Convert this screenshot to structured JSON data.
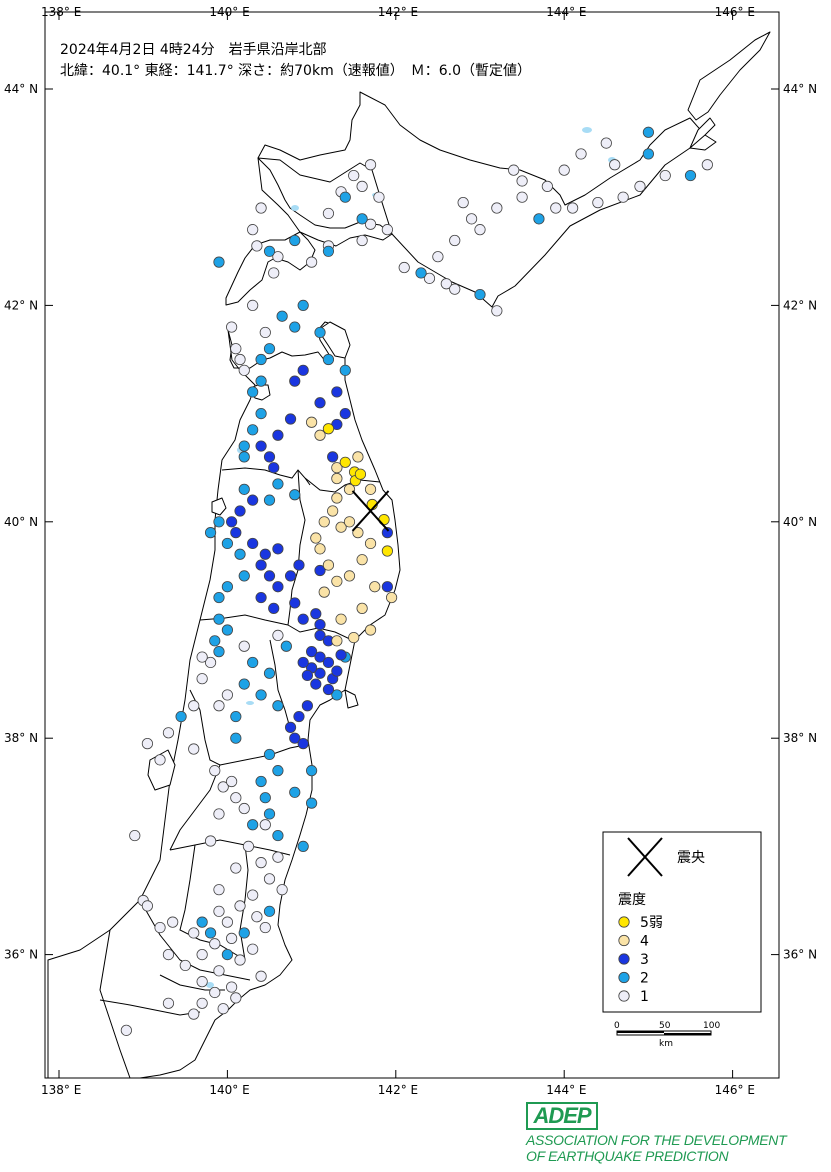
{
  "header": {
    "line1": "2024年4月2日 4時24分　岩手県沿岸北部",
    "line2": "北緯：40.1° 東経：141.7° 深さ：約70km（速報値）　Ｍ：6.0（暫定値）"
  },
  "axes": {
    "lon_labels": [
      "138° E",
      "140° E",
      "142° E",
      "144° E",
      "146° E"
    ],
    "lat_labels": [
      "44° N",
      "42° N",
      "40° N",
      "38° N",
      "36° N"
    ]
  },
  "legend": {
    "epicenter_label": "震央",
    "intensity_title": "震度",
    "items": [
      {
        "label": "5弱",
        "color": "#ffe600"
      },
      {
        "label": "4",
        "color": "#fae3a7"
      },
      {
        "label": "3",
        "color": "#1a36e0"
      },
      {
        "label": "2",
        "color": "#1ea2e6"
      },
      {
        "label": "1",
        "color": "#eeeef8"
      }
    ]
  },
  "scale": {
    "ticks": [
      "0",
      "50",
      "100"
    ],
    "unit": "km"
  },
  "logo": {
    "badge": "ADEP",
    "line1": "ASSOCIATION  FOR THE DEVELOPMENT",
    "line2": "OF EARTHQUAKE PREDICTION"
  },
  "epicenter": {
    "lat": 40.1,
    "lon": 141.7
  },
  "stations": [
    {
      "lat": 40.16,
      "lon": 141.72,
      "i": "5-"
    },
    {
      "lat": 40.02,
      "lon": 141.86,
      "i": "5-"
    },
    {
      "lat": 40.46,
      "lon": 141.51,
      "i": "5-"
    },
    {
      "lat": 40.55,
      "lon": 141.4,
      "i": "5-"
    },
    {
      "lat": 40.38,
      "lon": 141.52,
      "i": "5-"
    },
    {
      "lat": 40.44,
      "lon": 141.58,
      "i": "5-"
    },
    {
      "lat": 40.86,
      "lon": 141.2,
      "i": "5-"
    },
    {
      "lat": 39.73,
      "lon": 141.9,
      "i": "5-"
    },
    {
      "lat": 40.5,
      "lon": 141.3,
      "i": "4"
    },
    {
      "lat": 40.4,
      "lon": 141.3,
      "i": "4"
    },
    {
      "lat": 40.3,
      "lon": 141.45,
      "i": "4"
    },
    {
      "lat": 40.22,
      "lon": 141.3,
      "i": "4"
    },
    {
      "lat": 40.1,
      "lon": 141.25,
      "i": "4"
    },
    {
      "lat": 40.0,
      "lon": 141.15,
      "i": "4"
    },
    {
      "lat": 39.95,
      "lon": 141.35,
      "i": "4"
    },
    {
      "lat": 39.9,
      "lon": 141.55,
      "i": "4"
    },
    {
      "lat": 39.8,
      "lon": 141.7,
      "i": "4"
    },
    {
      "lat": 39.75,
      "lon": 141.1,
      "i": "4"
    },
    {
      "lat": 39.6,
      "lon": 141.2,
      "i": "4"
    },
    {
      "lat": 39.5,
      "lon": 141.45,
      "i": "4"
    },
    {
      "lat": 39.4,
      "lon": 141.75,
      "i": "4"
    },
    {
      "lat": 39.3,
      "lon": 141.95,
      "i": "4"
    },
    {
      "lat": 39.2,
      "lon": 141.6,
      "i": "4"
    },
    {
      "lat": 39.1,
      "lon": 141.35,
      "i": "4"
    },
    {
      "lat": 39.0,
      "lon": 141.7,
      "i": "4"
    },
    {
      "lat": 38.93,
      "lon": 141.5,
      "i": "4"
    },
    {
      "lat": 39.35,
      "lon": 141.15,
      "i": "4"
    },
    {
      "lat": 40.6,
      "lon": 141.55,
      "i": "4"
    },
    {
      "lat": 40.3,
      "lon": 141.7,
      "i": "4"
    },
    {
      "lat": 39.65,
      "lon": 141.6,
      "i": "4"
    },
    {
      "lat": 40.92,
      "lon": 141.0,
      "i": "4"
    },
    {
      "lat": 40.8,
      "lon": 141.1,
      "i": "4"
    },
    {
      "lat": 39.85,
      "lon": 141.05,
      "i": "4"
    },
    {
      "lat": 39.45,
      "lon": 141.3,
      "i": "4"
    },
    {
      "lat": 38.9,
      "lon": 141.3,
      "i": "4"
    },
    {
      "lat": 40.0,
      "lon": 141.45,
      "i": "4"
    },
    {
      "lat": 41.2,
      "lon": 141.3,
      "i": "3"
    },
    {
      "lat": 41.1,
      "lon": 141.1,
      "i": "3"
    },
    {
      "lat": 41.0,
      "lon": 141.4,
      "i": "3"
    },
    {
      "lat": 40.9,
      "lon": 141.3,
      "i": "3"
    },
    {
      "lat": 41.4,
      "lon": 140.9,
      "i": "3"
    },
    {
      "lat": 41.3,
      "lon": 140.8,
      "i": "3"
    },
    {
      "lat": 40.95,
      "lon": 140.75,
      "i": "3"
    },
    {
      "lat": 40.8,
      "lon": 140.6,
      "i": "3"
    },
    {
      "lat": 40.7,
      "lon": 140.4,
      "i": "3"
    },
    {
      "lat": 40.6,
      "lon": 140.5,
      "i": "3"
    },
    {
      "lat": 40.5,
      "lon": 140.55,
      "i": "3"
    },
    {
      "lat": 40.2,
      "lon": 140.3,
      "i": "3"
    },
    {
      "lat": 40.1,
      "lon": 140.15,
      "i": "3"
    },
    {
      "lat": 39.9,
      "lon": 140.1,
      "i": "3"
    },
    {
      "lat": 39.8,
      "lon": 140.3,
      "i": "3"
    },
    {
      "lat": 39.6,
      "lon": 140.4,
      "i": "3"
    },
    {
      "lat": 39.5,
      "lon": 140.5,
      "i": "3"
    },
    {
      "lat": 39.4,
      "lon": 140.6,
      "i": "3"
    },
    {
      "lat": 39.3,
      "lon": 140.4,
      "i": "3"
    },
    {
      "lat": 39.2,
      "lon": 140.55,
      "i": "3"
    },
    {
      "lat": 39.5,
      "lon": 140.75,
      "i": "3"
    },
    {
      "lat": 39.6,
      "lon": 140.85,
      "i": "3"
    },
    {
      "lat": 39.25,
      "lon": 140.8,
      "i": "3"
    },
    {
      "lat": 39.7,
      "lon": 140.45,
      "i": "3"
    },
    {
      "lat": 39.05,
      "lon": 141.1,
      "i": "3"
    },
    {
      "lat": 39.15,
      "lon": 141.05,
      "i": "3"
    },
    {
      "lat": 38.95,
      "lon": 141.1,
      "i": "3"
    },
    {
      "lat": 38.9,
      "lon": 141.2,
      "i": "3"
    },
    {
      "lat": 38.8,
      "lon": 141.0,
      "i": "3"
    },
    {
      "lat": 38.75,
      "lon": 141.1,
      "i": "3"
    },
    {
      "lat": 38.7,
      "lon": 141.2,
      "i": "3"
    },
    {
      "lat": 38.6,
      "lon": 141.1,
      "i": "3"
    },
    {
      "lat": 38.65,
      "lon": 141.0,
      "i": "3"
    },
    {
      "lat": 38.55,
      "lon": 141.25,
      "i": "3"
    },
    {
      "lat": 38.58,
      "lon": 140.95,
      "i": "3"
    },
    {
      "lat": 38.7,
      "lon": 140.9,
      "i": "3"
    },
    {
      "lat": 38.5,
      "lon": 141.05,
      "i": "3"
    },
    {
      "lat": 38.45,
      "lon": 141.2,
      "i": "3"
    },
    {
      "lat": 38.3,
      "lon": 140.95,
      "i": "3"
    },
    {
      "lat": 38.2,
      "lon": 140.85,
      "i": "3"
    },
    {
      "lat": 38.1,
      "lon": 140.75,
      "i": "3"
    },
    {
      "lat": 38.0,
      "lon": 140.8,
      "i": "3"
    },
    {
      "lat": 37.95,
      "lon": 140.9,
      "i": "3"
    },
    {
      "lat": 38.62,
      "lon": 141.3,
      "i": "3"
    },
    {
      "lat": 38.77,
      "lon": 141.35,
      "i": "3"
    },
    {
      "lat": 39.4,
      "lon": 141.9,
      "i": "3"
    },
    {
      "lat": 39.9,
      "lon": 141.9,
      "i": "3"
    },
    {
      "lat": 40.6,
      "lon": 141.25,
      "i": "3"
    },
    {
      "lat": 39.75,
      "lon": 140.6,
      "i": "3"
    },
    {
      "lat": 39.1,
      "lon": 140.9,
      "i": "3"
    },
    {
      "lat": 40.0,
      "lon": 140.05,
      "i": "3"
    },
    {
      "lat": 39.55,
      "lon": 141.1,
      "i": "3"
    },
    {
      "lat": 43.6,
      "lon": 145.0,
      "i": "2"
    },
    {
      "lat": 43.4,
      "lon": 145.0,
      "i": "2"
    },
    {
      "lat": 43.2,
      "lon": 145.5,
      "i": "2"
    },
    {
      "lat": 43.0,
      "lon": 141.4,
      "i": "2"
    },
    {
      "lat": 42.8,
      "lon": 141.6,
      "i": "2"
    },
    {
      "lat": 42.6,
      "lon": 140.8,
      "i": "2"
    },
    {
      "lat": 42.5,
      "lon": 140.5,
      "i": "2"
    },
    {
      "lat": 42.4,
      "lon": 139.9,
      "i": "2"
    },
    {
      "lat": 42.3,
      "lon": 142.3,
      "i": "2"
    },
    {
      "lat": 42.1,
      "lon": 143.0,
      "i": "2"
    },
    {
      "lat": 42.8,
      "lon": 143.7,
      "i": "2"
    },
    {
      "lat": 42.5,
      "lon": 141.2,
      "i": "2"
    },
    {
      "lat": 42.0,
      "lon": 140.9,
      "i": "2"
    },
    {
      "lat": 41.9,
      "lon": 140.65,
      "i": "2"
    },
    {
      "lat": 41.8,
      "lon": 140.8,
      "i": "2"
    },
    {
      "lat": 41.75,
      "lon": 141.1,
      "i": "2"
    },
    {
      "lat": 41.6,
      "lon": 140.5,
      "i": "2"
    },
    {
      "lat": 41.5,
      "lon": 140.4,
      "i": "2"
    },
    {
      "lat": 41.3,
      "lon": 140.4,
      "i": "2"
    },
    {
      "lat": 41.2,
      "lon": 140.3,
      "i": "2"
    },
    {
      "lat": 41.0,
      "lon": 140.4,
      "i": "2"
    },
    {
      "lat": 40.85,
      "lon": 140.3,
      "i": "2"
    },
    {
      "lat": 40.7,
      "lon": 140.2,
      "i": "2"
    },
    {
      "lat": 40.6,
      "lon": 140.2,
      "i": "2"
    },
    {
      "lat": 40.35,
      "lon": 140.6,
      "i": "2"
    },
    {
      "lat": 40.3,
      "lon": 140.2,
      "i": "2"
    },
    {
      "lat": 40.2,
      "lon": 140.5,
      "i": "2"
    },
    {
      "lat": 40.25,
      "lon": 140.8,
      "i": "2"
    },
    {
      "lat": 40.0,
      "lon": 139.9,
      "i": "2"
    },
    {
      "lat": 39.9,
      "lon": 139.8,
      "i": "2"
    },
    {
      "lat": 39.8,
      "lon": 140.0,
      "i": "2"
    },
    {
      "lat": 39.7,
      "lon": 140.15,
      "i": "2"
    },
    {
      "lat": 39.5,
      "lon": 140.2,
      "i": "2"
    },
    {
      "lat": 39.4,
      "lon": 140.0,
      "i": "2"
    },
    {
      "lat": 39.3,
      "lon": 139.9,
      "i": "2"
    },
    {
      "lat": 39.1,
      "lon": 139.9,
      "i": "2"
    },
    {
      "lat": 39.0,
      "lon": 140.0,
      "i": "2"
    },
    {
      "lat": 38.9,
      "lon": 139.85,
      "i": "2"
    },
    {
      "lat": 38.8,
      "lon": 139.9,
      "i": "2"
    },
    {
      "lat": 38.7,
      "lon": 140.3,
      "i": "2"
    },
    {
      "lat": 38.6,
      "lon": 140.5,
      "i": "2"
    },
    {
      "lat": 38.5,
      "lon": 140.2,
      "i": "2"
    },
    {
      "lat": 38.4,
      "lon": 140.4,
      "i": "2"
    },
    {
      "lat": 38.2,
      "lon": 140.1,
      "i": "2"
    },
    {
      "lat": 38.0,
      "lon": 140.1,
      "i": "2"
    },
    {
      "lat": 38.2,
      "lon": 139.45,
      "i": "2"
    },
    {
      "lat": 37.85,
      "lon": 140.5,
      "i": "2"
    },
    {
      "lat": 37.7,
      "lon": 140.6,
      "i": "2"
    },
    {
      "lat": 37.6,
      "lon": 140.4,
      "i": "2"
    },
    {
      "lat": 37.5,
      "lon": 140.8,
      "i": "2"
    },
    {
      "lat": 37.4,
      "lon": 141.0,
      "i": "2"
    },
    {
      "lat": 37.3,
      "lon": 140.5,
      "i": "2"
    },
    {
      "lat": 37.2,
      "lon": 140.3,
      "i": "2"
    },
    {
      "lat": 37.0,
      "lon": 140.9,
      "i": "2"
    },
    {
      "lat": 37.1,
      "lon": 140.6,
      "i": "2"
    },
    {
      "lat": 38.85,
      "lon": 140.7,
      "i": "2"
    },
    {
      "lat": 38.75,
      "lon": 141.4,
      "i": "2"
    },
    {
      "lat": 38.4,
      "lon": 141.3,
      "i": "2"
    },
    {
      "lat": 38.3,
      "lon": 140.6,
      "i": "2"
    },
    {
      "lat": 41.5,
      "lon": 141.2,
      "i": "2"
    },
    {
      "lat": 41.4,
      "lon": 141.4,
      "i": "2"
    },
    {
      "lat": 36.4,
      "lon": 140.5,
      "i": "2"
    },
    {
      "lat": 36.2,
      "lon": 140.2,
      "i": "2"
    },
    {
      "lat": 36.0,
      "lon": 140.0,
      "i": "2"
    },
    {
      "lat": 36.3,
      "lon": 139.7,
      "i": "2"
    },
    {
      "lat": 36.2,
      "lon": 139.8,
      "i": "2"
    },
    {
      "lat": 37.7,
      "lon": 141.0,
      "i": "2"
    },
    {
      "lat": 37.45,
      "lon": 140.45,
      "i": "2"
    },
    {
      "lat": 43.5,
      "lon": 144.5,
      "i": "1"
    },
    {
      "lat": 43.4,
      "lon": 144.2,
      "i": "1"
    },
    {
      "lat": 43.25,
      "lon": 144.0,
      "i": "1"
    },
    {
      "lat": 43.1,
      "lon": 143.8,
      "i": "1"
    },
    {
      "lat": 43.0,
      "lon": 143.5,
      "i": "1"
    },
    {
      "lat": 42.9,
      "lon": 143.2,
      "i": "1"
    },
    {
      "lat": 42.95,
      "lon": 142.8,
      "i": "1"
    },
    {
      "lat": 42.8,
      "lon": 142.9,
      "i": "1"
    },
    {
      "lat": 43.25,
      "lon": 143.4,
      "i": "1"
    },
    {
      "lat": 43.15,
      "lon": 143.5,
      "i": "1"
    },
    {
      "lat": 43.3,
      "lon": 144.6,
      "i": "1"
    },
    {
      "lat": 43.2,
      "lon": 145.2,
      "i": "1"
    },
    {
      "lat": 43.3,
      "lon": 145.7,
      "i": "1"
    },
    {
      "lat": 43.1,
      "lon": 144.9,
      "i": "1"
    },
    {
      "lat": 43.0,
      "lon": 144.7,
      "i": "1"
    },
    {
      "lat": 42.95,
      "lon": 144.4,
      "i": "1"
    },
    {
      "lat": 42.9,
      "lon": 144.1,
      "i": "1"
    },
    {
      "lat": 42.9,
      "lon": 143.9,
      "i": "1"
    },
    {
      "lat": 43.3,
      "lon": 141.7,
      "i": "1"
    },
    {
      "lat": 43.2,
      "lon": 141.5,
      "i": "1"
    },
    {
      "lat": 43.05,
      "lon": 141.35,
      "i": "1"
    },
    {
      "lat": 43.1,
      "lon": 141.6,
      "i": "1"
    },
    {
      "lat": 43.0,
      "lon": 141.8,
      "i": "1"
    },
    {
      "lat": 42.85,
      "lon": 141.2,
      "i": "1"
    },
    {
      "lat": 42.75,
      "lon": 141.7,
      "i": "1"
    },
    {
      "lat": 42.7,
      "lon": 141.9,
      "i": "1"
    },
    {
      "lat": 42.6,
      "lon": 141.6,
      "i": "1"
    },
    {
      "lat": 42.55,
      "lon": 141.2,
      "i": "1"
    },
    {
      "lat": 42.4,
      "lon": 141.0,
      "i": "1"
    },
    {
      "lat": 42.35,
      "lon": 142.1,
      "i": "1"
    },
    {
      "lat": 42.2,
      "lon": 142.6,
      "i": "1"
    },
    {
      "lat": 42.25,
      "lon": 142.4,
      "i": "1"
    },
    {
      "lat": 42.15,
      "lon": 142.7,
      "i": "1"
    },
    {
      "lat": 41.95,
      "lon": 143.2,
      "i": "1"
    },
    {
      "lat": 42.45,
      "lon": 142.5,
      "i": "1"
    },
    {
      "lat": 42.6,
      "lon": 142.7,
      "i": "1"
    },
    {
      "lat": 42.7,
      "lon": 143.0,
      "i": "1"
    },
    {
      "lat": 42.9,
      "lon": 140.4,
      "i": "1"
    },
    {
      "lat": 42.7,
      "lon": 140.3,
      "i": "1"
    },
    {
      "lat": 42.55,
      "lon": 140.35,
      "i": "1"
    },
    {
      "lat": 42.45,
      "lon": 140.6,
      "i": "1"
    },
    {
      "lat": 42.3,
      "lon": 140.55,
      "i": "1"
    },
    {
      "lat": 42.0,
      "lon": 140.3,
      "i": "1"
    },
    {
      "lat": 41.8,
      "lon": 140.05,
      "i": "1"
    },
    {
      "lat": 41.6,
      "lon": 140.1,
      "i": "1"
    },
    {
      "lat": 41.5,
      "lon": 140.15,
      "i": "1"
    },
    {
      "lat": 41.4,
      "lon": 140.2,
      "i": "1"
    },
    {
      "lat": 41.75,
      "lon": 140.45,
      "i": "1"
    },
    {
      "lat": 38.85,
      "lon": 140.2,
      "i": "1"
    },
    {
      "lat": 38.7,
      "lon": 139.8,
      "i": "1"
    },
    {
      "lat": 38.55,
      "lon": 139.7,
      "i": "1"
    },
    {
      "lat": 38.4,
      "lon": 140.0,
      "i": "1"
    },
    {
      "lat": 38.3,
      "lon": 139.9,
      "i": "1"
    },
    {
      "lat": 38.05,
      "lon": 139.3,
      "i": "1"
    },
    {
      "lat": 37.9,
      "lon": 139.6,
      "i": "1"
    },
    {
      "lat": 37.7,
      "lon": 139.85,
      "i": "1"
    },
    {
      "lat": 37.55,
      "lon": 139.95,
      "i": "1"
    },
    {
      "lat": 37.45,
      "lon": 140.1,
      "i": "1"
    },
    {
      "lat": 37.35,
      "lon": 140.2,
      "i": "1"
    },
    {
      "lat": 37.2,
      "lon": 140.45,
      "i": "1"
    },
    {
      "lat": 37.05,
      "lon": 139.8,
      "i": "1"
    },
    {
      "lat": 37.0,
      "lon": 140.25,
      "i": "1"
    },
    {
      "lat": 36.9,
      "lon": 140.6,
      "i": "1"
    },
    {
      "lat": 36.85,
      "lon": 140.4,
      "i": "1"
    },
    {
      "lat": 36.7,
      "lon": 140.5,
      "i": "1"
    },
    {
      "lat": 36.6,
      "lon": 140.65,
      "i": "1"
    },
    {
      "lat": 36.55,
      "lon": 140.3,
      "i": "1"
    },
    {
      "lat": 36.45,
      "lon": 140.15,
      "i": "1"
    },
    {
      "lat": 36.4,
      "lon": 139.9,
      "i": "1"
    },
    {
      "lat": 36.35,
      "lon": 140.35,
      "i": "1"
    },
    {
      "lat": 36.3,
      "lon": 140.0,
      "i": "1"
    },
    {
      "lat": 36.25,
      "lon": 140.45,
      "i": "1"
    },
    {
      "lat": 36.2,
      "lon": 139.6,
      "i": "1"
    },
    {
      "lat": 36.15,
      "lon": 140.05,
      "i": "1"
    },
    {
      "lat": 36.1,
      "lon": 139.85,
      "i": "1"
    },
    {
      "lat": 36.05,
      "lon": 140.3,
      "i": "1"
    },
    {
      "lat": 36.0,
      "lon": 139.7,
      "i": "1"
    },
    {
      "lat": 35.95,
      "lon": 140.15,
      "i": "1"
    },
    {
      "lat": 35.9,
      "lon": 139.5,
      "i": "1"
    },
    {
      "lat": 35.85,
      "lon": 139.9,
      "i": "1"
    },
    {
      "lat": 35.8,
      "lon": 140.4,
      "i": "1"
    },
    {
      "lat": 35.75,
      "lon": 139.7,
      "i": "1"
    },
    {
      "lat": 35.7,
      "lon": 140.05,
      "i": "1"
    },
    {
      "lat": 35.65,
      "lon": 139.85,
      "i": "1"
    },
    {
      "lat": 35.6,
      "lon": 140.1,
      "i": "1"
    },
    {
      "lat": 35.55,
      "lon": 139.7,
      "i": "1"
    },
    {
      "lat": 35.5,
      "lon": 139.95,
      "i": "1"
    },
    {
      "lat": 35.45,
      "lon": 139.6,
      "i": "1"
    },
    {
      "lat": 36.5,
      "lon": 139.0,
      "i": "1"
    },
    {
      "lat": 36.45,
      "lon": 139.05,
      "i": "1"
    },
    {
      "lat": 36.25,
      "lon": 139.2,
      "i": "1"
    },
    {
      "lat": 36.3,
      "lon": 139.35,
      "i": "1"
    },
    {
      "lat": 35.55,
      "lon": 139.3,
      "i": "1"
    },
    {
      "lat": 35.3,
      "lon": 138.8,
      "i": "1"
    },
    {
      "lat": 36.0,
      "lon": 139.3,
      "i": "1"
    },
    {
      "lat": 36.6,
      "lon": 139.9,
      "i": "1"
    },
    {
      "lat": 36.8,
      "lon": 140.1,
      "i": "1"
    },
    {
      "lat": 37.1,
      "lon": 138.9,
      "i": "1"
    },
    {
      "lat": 37.8,
      "lon": 139.2,
      "i": "1"
    },
    {
      "lat": 37.95,
      "lon": 139.05,
      "i": "1"
    },
    {
      "lat": 38.3,
      "lon": 139.6,
      "i": "1"
    },
    {
      "lat": 38.75,
      "lon": 139.7,
      "i": "1"
    },
    {
      "lat": 38.95,
      "lon": 140.6,
      "i": "1"
    },
    {
      "lat": 37.6,
      "lon": 140.05,
      "i": "1"
    },
    {
      "lat": 37.3,
      "lon": 139.9,
      "i": "1"
    }
  ]
}
